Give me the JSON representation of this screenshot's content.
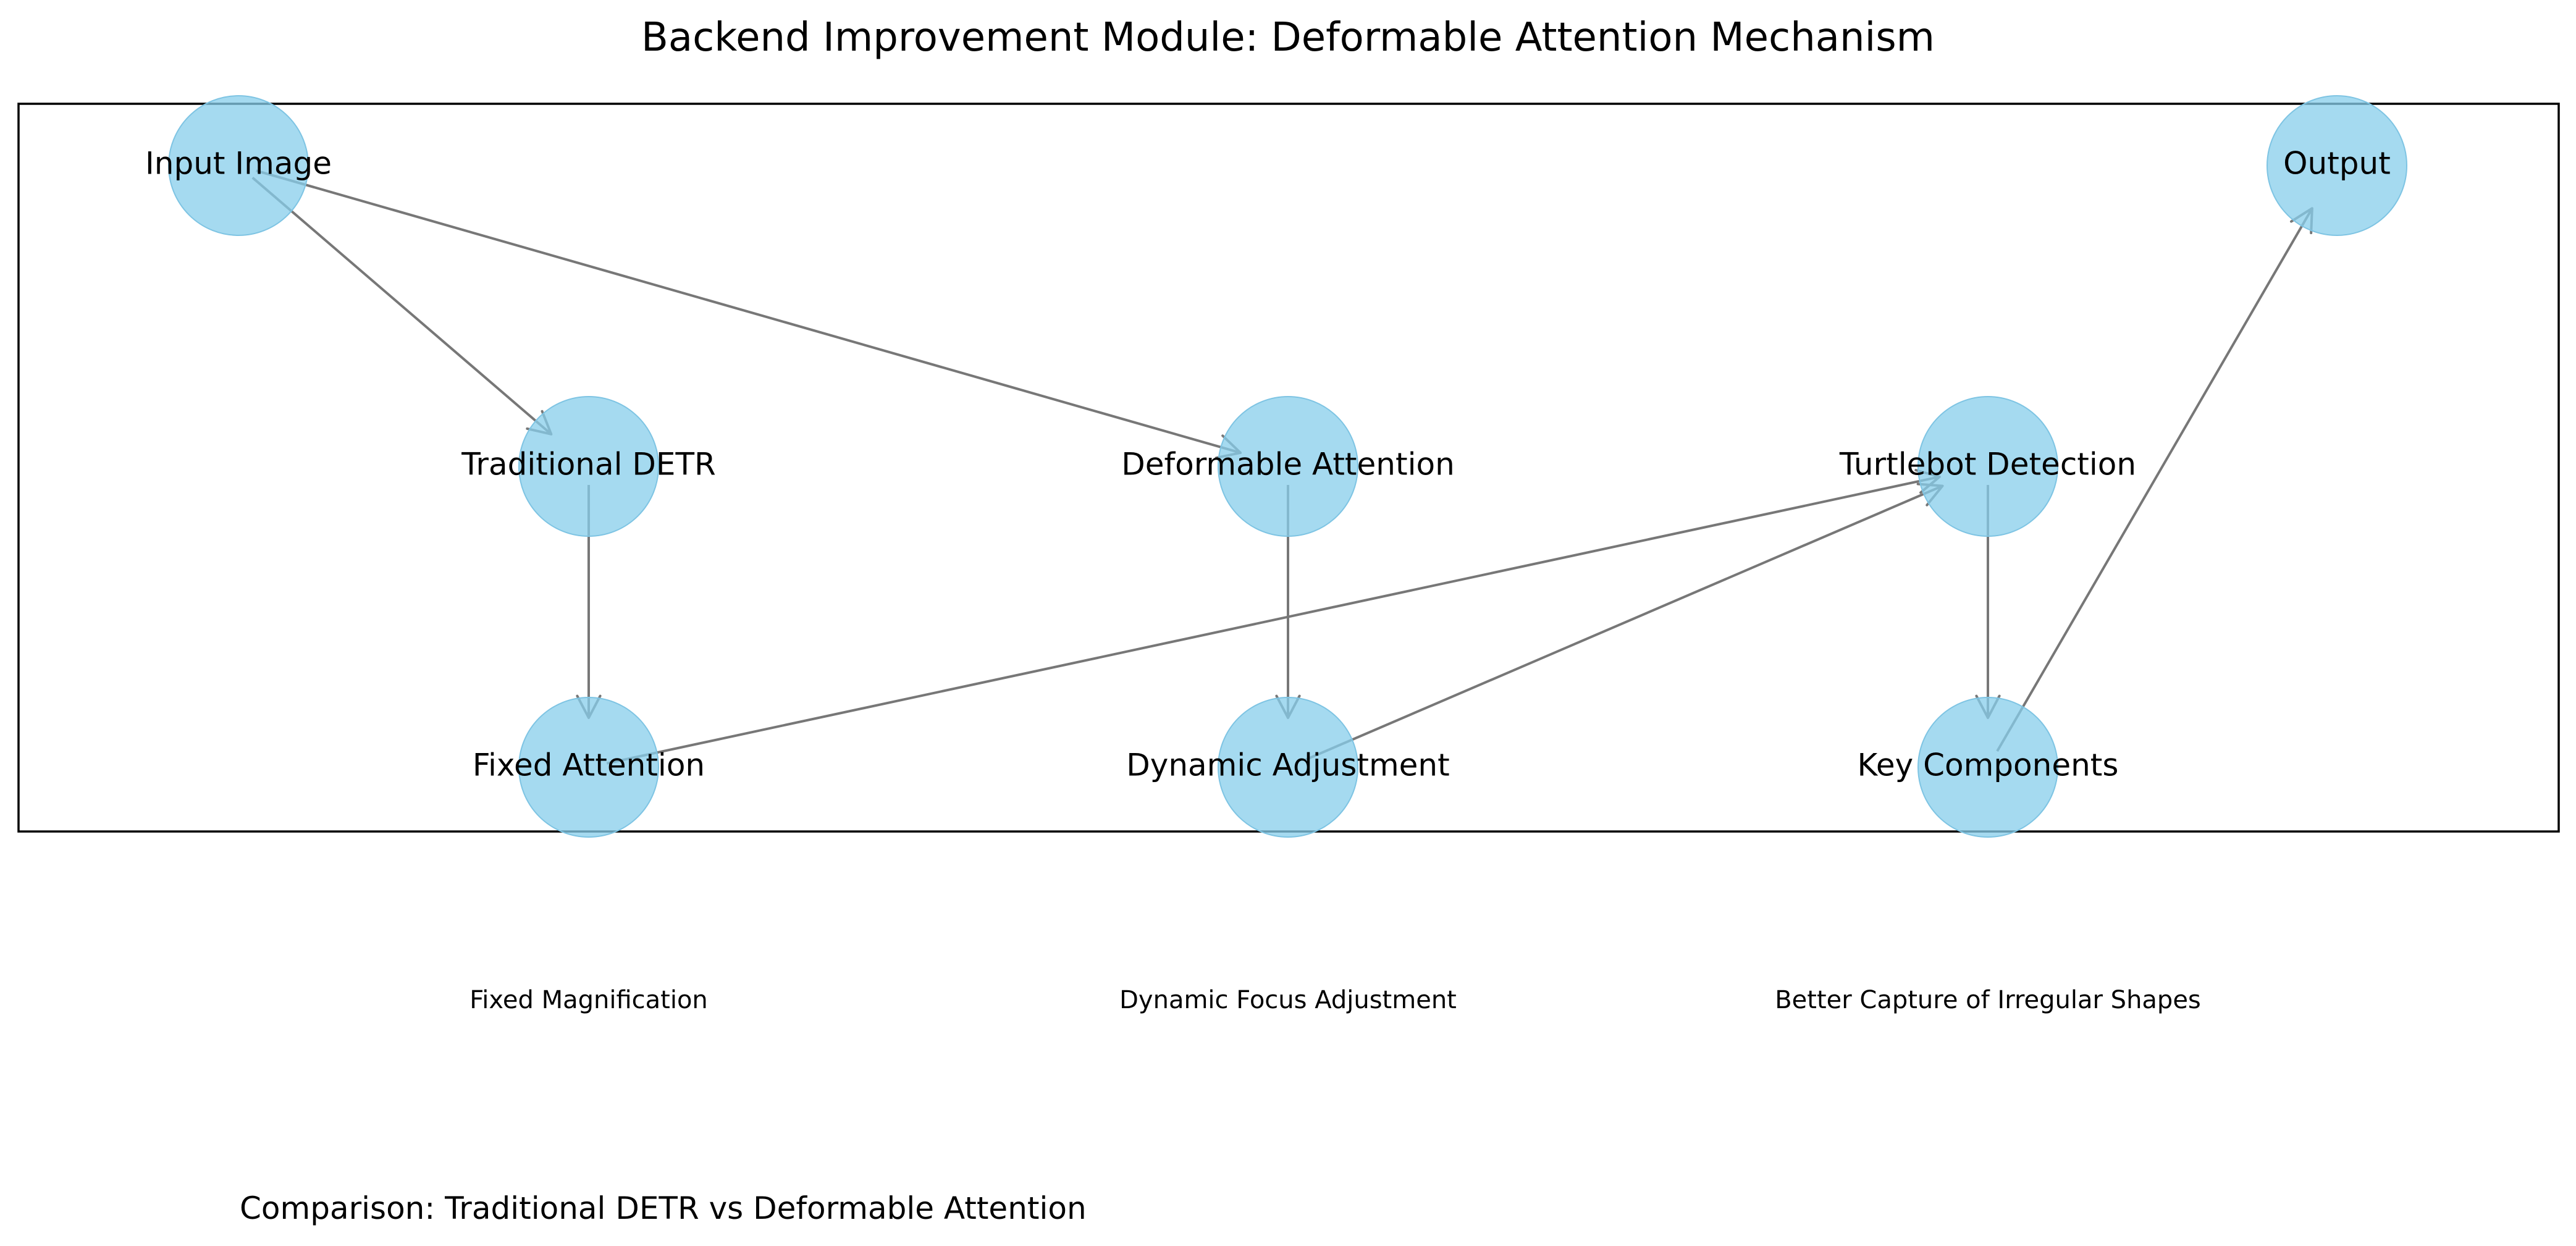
{
  "title": "Backend Improvement Module: Deformable Attention Mechanism",
  "nodes": [
    {
      "id": "input-image",
      "label": "Input Image"
    },
    {
      "id": "output",
      "label": "Output"
    },
    {
      "id": "traditional-detr",
      "label": "Traditional DETR"
    },
    {
      "id": "deformable-attention",
      "label": "Deformable Attention"
    },
    {
      "id": "turtlebot-detection",
      "label": "Turtlebot Detection"
    },
    {
      "id": "fixed-attention",
      "label": "Fixed Attention"
    },
    {
      "id": "dynamic-adjustment",
      "label": "Dynamic Adjustment"
    },
    {
      "id": "key-components",
      "label": "Key Components"
    }
  ],
  "edges": [
    {
      "from": "input-image",
      "to": "traditional-detr"
    },
    {
      "from": "input-image",
      "to": "deformable-attention"
    },
    {
      "from": "traditional-detr",
      "to": "fixed-attention"
    },
    {
      "from": "deformable-attention",
      "to": "dynamic-adjustment"
    },
    {
      "from": "fixed-attention",
      "to": "turtlebot-detection"
    },
    {
      "from": "dynamic-adjustment",
      "to": "turtlebot-detection"
    },
    {
      "from": "turtlebot-detection",
      "to": "key-components"
    },
    {
      "from": "key-components",
      "to": "output"
    }
  ],
  "captions": {
    "fixed": "Fixed Magnification",
    "dynamic": "Dynamic Focus Adjustment",
    "better": "Better Capture of Irregular Shapes"
  },
  "footer": "Comparison: Traditional DETR vs Deformable Attention",
  "colors": {
    "node_fill": "#87CEEB",
    "edge": "#777777",
    "frame": "#000000"
  }
}
